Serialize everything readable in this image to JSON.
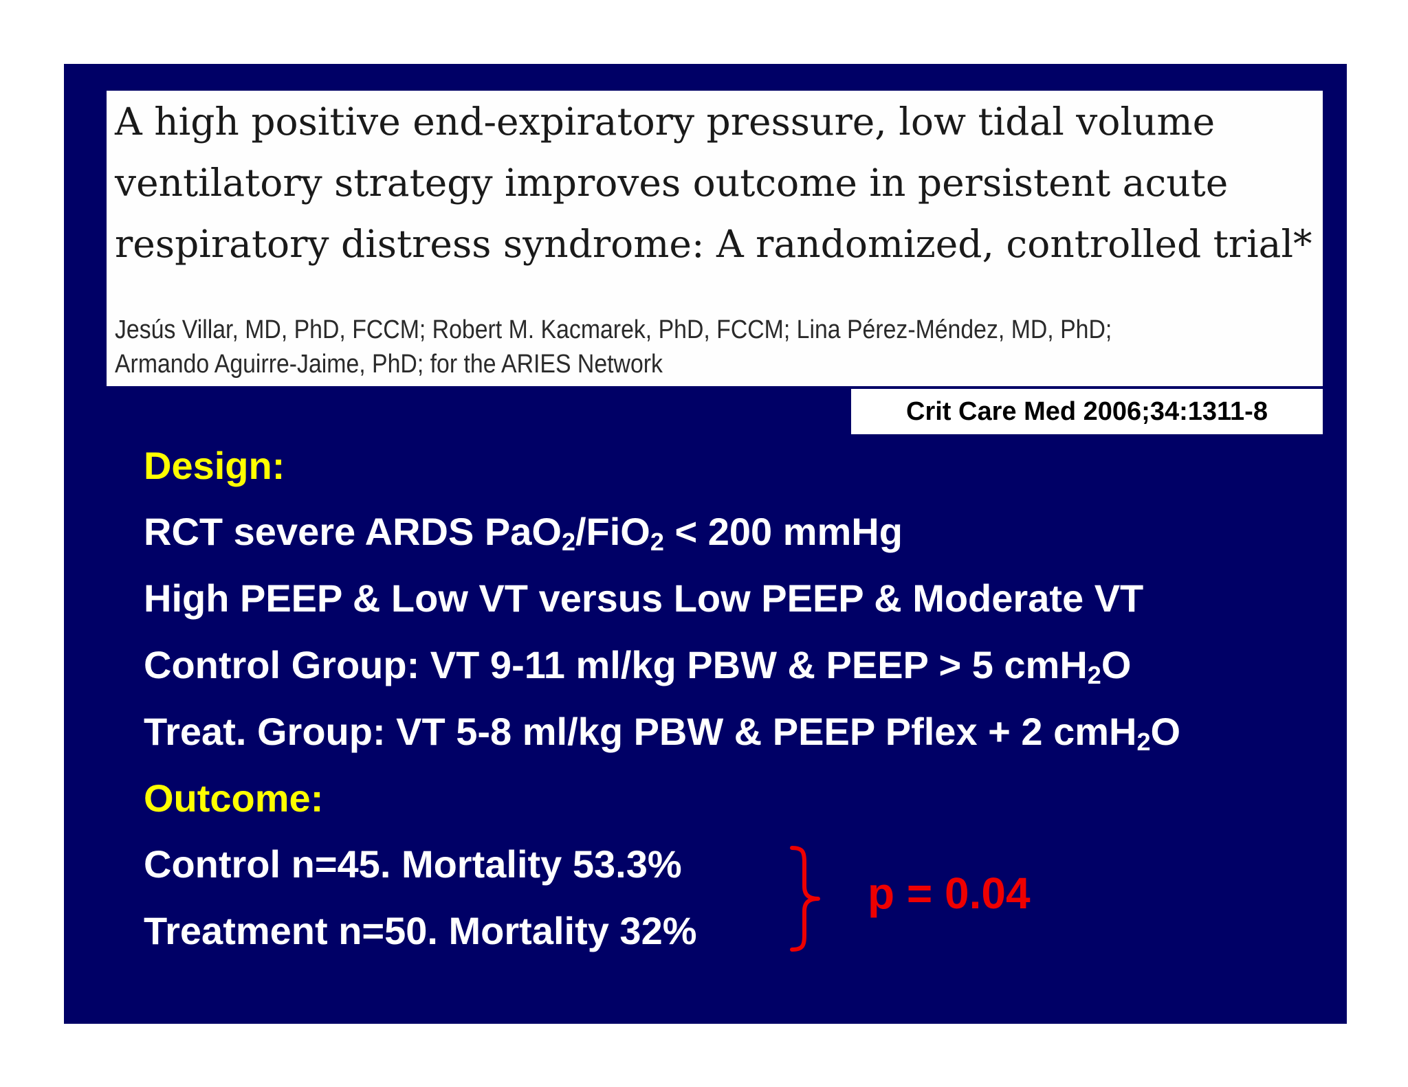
{
  "paper": {
    "title_lines": [
      "A high positive end-expiratory pressure, low tidal volume",
      "ventilatory strategy improves outcome in persistent acute",
      "respiratory distress syndrome: A randomized, controlled trial*"
    ],
    "author_lines": [
      "Jesús Villar, MD, PhD, FCCM; Robert M. Kacmarek, PhD, FCCM; Lina Pérez-Méndez, MD, PhD;",
      "Armando Aguirre-Jaime, PhD; for the ARIES Network"
    ]
  },
  "citation": "Crit Care Med 2006;34:1311-8",
  "design": {
    "heading": "Design:",
    "rct_prefix": "RCT severe ARDS PaO",
    "rct_sub1": "2",
    "rct_mid": "/FiO",
    "rct_sub2": "2",
    "rct_suffix": " < 200 mmHg",
    "comparison": "High PEEP & Low VT versus Low PEEP & Moderate VT",
    "control_prefix": "Control Group: VT 9-11 ml/kg PBW & PEEP > 5 cmH",
    "control_sub": "2",
    "control_suffix": "O",
    "treat_prefix": "Treat. Group: VT 5-8 ml/kg PBW & PEEP Pflex + 2 cmH",
    "treat_sub": "2",
    "treat_suffix": "O"
  },
  "outcome": {
    "heading": "Outcome:",
    "control": "Control n=45. Mortality 53.3%",
    "treatment": "Treatment n=50. Mortality 32%",
    "p_value": "p = 0.04"
  },
  "colors": {
    "slide_background": "#000066",
    "heading_text": "#ffff00",
    "body_text": "#ffffff",
    "p_value": "#ee0000"
  }
}
